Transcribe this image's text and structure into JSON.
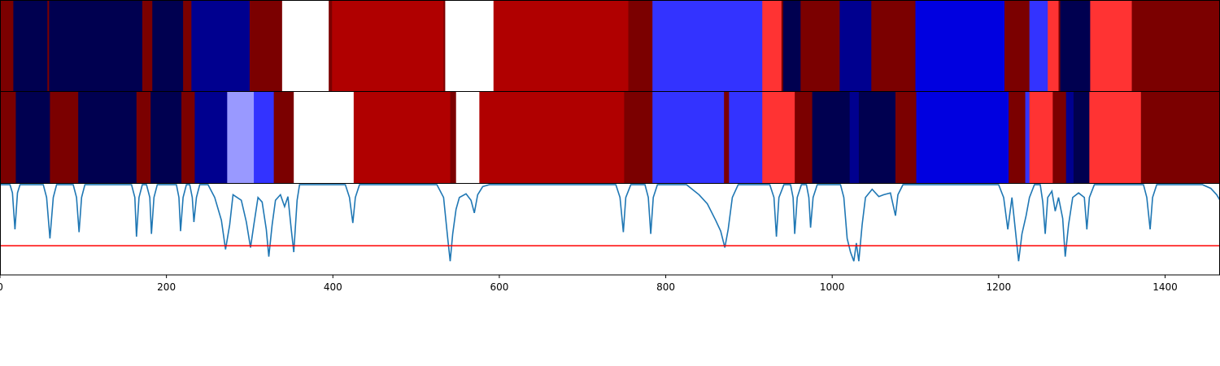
{
  "chart_data": {
    "type": "heatmap",
    "x_max": 1466,
    "xticks": [
      0,
      200,
      400,
      600,
      800,
      1000,
      1200,
      1400
    ],
    "xtick_labels": [
      "0",
      "200",
      "400",
      "600",
      "800",
      "1000",
      "1200",
      "1400"
    ],
    "palette": {
      "wine": "#7b0000",
      "red": "#b00000",
      "bright_red": "#ff3333",
      "navy": "#000050",
      "deep_blue": "#00008f",
      "blue": "#0000e0",
      "light_blue": "#3333ff",
      "pale_blue": "#9999ff",
      "white": "#ffffff"
    },
    "row1_segments": [
      {
        "start": 0,
        "end": 16,
        "color": "wine"
      },
      {
        "start": 16,
        "end": 57,
        "color": "navy"
      },
      {
        "start": 57,
        "end": 59,
        "color": "wine"
      },
      {
        "start": 59,
        "end": 171,
        "color": "navy"
      },
      {
        "start": 171,
        "end": 183,
        "color": "wine"
      },
      {
        "start": 183,
        "end": 220,
        "color": "navy"
      },
      {
        "start": 220,
        "end": 230,
        "color": "wine"
      },
      {
        "start": 230,
        "end": 300,
        "color": "deep_blue"
      },
      {
        "start": 300,
        "end": 339,
        "color": "wine"
      },
      {
        "start": 339,
        "end": 395,
        "color": "white"
      },
      {
        "start": 395,
        "end": 399,
        "color": "wine"
      },
      {
        "start": 399,
        "end": 533,
        "color": "red"
      },
      {
        "start": 533,
        "end": 535,
        "color": "wine"
      },
      {
        "start": 535,
        "end": 593,
        "color": "white"
      },
      {
        "start": 593,
        "end": 755,
        "color": "red"
      },
      {
        "start": 755,
        "end": 784,
        "color": "wine"
      },
      {
        "start": 784,
        "end": 916,
        "color": "light_blue"
      },
      {
        "start": 916,
        "end": 939,
        "color": "bright_red"
      },
      {
        "start": 939,
        "end": 941,
        "color": "wine"
      },
      {
        "start": 941,
        "end": 962,
        "color": "navy"
      },
      {
        "start": 962,
        "end": 1009,
        "color": "wine"
      },
      {
        "start": 1009,
        "end": 1047,
        "color": "deep_blue"
      },
      {
        "start": 1047,
        "end": 1100,
        "color": "wine"
      },
      {
        "start": 1100,
        "end": 1207,
        "color": "blue"
      },
      {
        "start": 1207,
        "end": 1237,
        "color": "wine"
      },
      {
        "start": 1237,
        "end": 1259,
        "color": "light_blue"
      },
      {
        "start": 1259,
        "end": 1272,
        "color": "bright_red"
      },
      {
        "start": 1272,
        "end": 1274,
        "color": "wine"
      },
      {
        "start": 1274,
        "end": 1310,
        "color": "navy"
      },
      {
        "start": 1310,
        "end": 1360,
        "color": "bright_red"
      },
      {
        "start": 1360,
        "end": 1466,
        "color": "wine"
      }
    ],
    "row2_segments": [
      {
        "start": 0,
        "end": 19,
        "color": "wine"
      },
      {
        "start": 19,
        "end": 60,
        "color": "navy"
      },
      {
        "start": 60,
        "end": 94,
        "color": "wine"
      },
      {
        "start": 94,
        "end": 164,
        "color": "navy"
      },
      {
        "start": 164,
        "end": 181,
        "color": "wine"
      },
      {
        "start": 181,
        "end": 218,
        "color": "navy"
      },
      {
        "start": 218,
        "end": 234,
        "color": "wine"
      },
      {
        "start": 234,
        "end": 273,
        "color": "deep_blue"
      },
      {
        "start": 273,
        "end": 305,
        "color": "pale_blue"
      },
      {
        "start": 305,
        "end": 329,
        "color": "light_blue"
      },
      {
        "start": 329,
        "end": 353,
        "color": "wine"
      },
      {
        "start": 353,
        "end": 425,
        "color": "white"
      },
      {
        "start": 425,
        "end": 541,
        "color": "red"
      },
      {
        "start": 541,
        "end": 548,
        "color": "wine"
      },
      {
        "start": 548,
        "end": 576,
        "color": "white"
      },
      {
        "start": 576,
        "end": 750,
        "color": "red"
      },
      {
        "start": 750,
        "end": 784,
        "color": "wine"
      },
      {
        "start": 784,
        "end": 870,
        "color": "light_blue"
      },
      {
        "start": 870,
        "end": 876,
        "color": "wine"
      },
      {
        "start": 876,
        "end": 916,
        "color": "light_blue"
      },
      {
        "start": 916,
        "end": 955,
        "color": "bright_red"
      },
      {
        "start": 955,
        "end": 976,
        "color": "wine"
      },
      {
        "start": 976,
        "end": 1021,
        "color": "navy"
      },
      {
        "start": 1021,
        "end": 1032,
        "color": "deep_blue"
      },
      {
        "start": 1032,
        "end": 1076,
        "color": "navy"
      },
      {
        "start": 1076,
        "end": 1101,
        "color": "wine"
      },
      {
        "start": 1101,
        "end": 1212,
        "color": "blue"
      },
      {
        "start": 1212,
        "end": 1232,
        "color": "wine"
      },
      {
        "start": 1232,
        "end": 1237,
        "color": "light_blue"
      },
      {
        "start": 1237,
        "end": 1265,
        "color": "bright_red"
      },
      {
        "start": 1265,
        "end": 1281,
        "color": "wine"
      },
      {
        "start": 1281,
        "end": 1290,
        "color": "deep_blue"
      },
      {
        "start": 1290,
        "end": 1309,
        "color": "navy"
      },
      {
        "start": 1309,
        "end": 1371,
        "color": "bright_red"
      },
      {
        "start": 1371,
        "end": 1466,
        "color": "wine"
      }
    ],
    "line_series": {
      "color": "#1f77b4",
      "baseline_value": 1.0,
      "ylim": [
        0,
        1
      ],
      "threshold": 0.32,
      "threshold_color": "#ff0000",
      "points": [
        [
          0,
          0.99
        ],
        [
          12,
          0.99
        ],
        [
          15,
          0.9
        ],
        [
          18,
          0.5
        ],
        [
          21,
          0.9
        ],
        [
          24,
          0.99
        ],
        [
          52,
          0.99
        ],
        [
          56,
          0.85
        ],
        [
          60,
          0.4
        ],
        [
          64,
          0.85
        ],
        [
          68,
          0.99
        ],
        [
          88,
          0.99
        ],
        [
          92,
          0.85
        ],
        [
          95,
          0.47
        ],
        [
          98,
          0.85
        ],
        [
          102,
          0.99
        ],
        [
          158,
          0.99
        ],
        [
          162,
          0.85
        ],
        [
          164,
          0.42
        ],
        [
          167,
          0.85
        ],
        [
          171,
          0.99
        ],
        [
          176,
          0.99
        ],
        [
          180,
          0.85
        ],
        [
          182,
          0.45
        ],
        [
          185,
          0.85
        ],
        [
          189,
          0.99
        ],
        [
          212,
          0.99
        ],
        [
          215,
          0.85
        ],
        [
          217,
          0.48
        ],
        [
          220,
          0.85
        ],
        [
          224,
          0.99
        ],
        [
          228,
          0.99
        ],
        [
          231,
          0.85
        ],
        [
          233,
          0.58
        ],
        [
          236,
          0.85
        ],
        [
          240,
          0.99
        ],
        [
          250,
          0.99
        ],
        [
          258,
          0.85
        ],
        [
          266,
          0.6
        ],
        [
          271,
          0.28
        ],
        [
          276,
          0.55
        ],
        [
          280,
          0.88
        ],
        [
          290,
          0.82
        ],
        [
          296,
          0.58
        ],
        [
          301,
          0.3
        ],
        [
          305,
          0.55
        ],
        [
          310,
          0.85
        ],
        [
          315,
          0.8
        ],
        [
          320,
          0.5
        ],
        [
          323,
          0.2
        ],
        [
          327,
          0.55
        ],
        [
          331,
          0.82
        ],
        [
          337,
          0.88
        ],
        [
          342,
          0.75
        ],
        [
          346,
          0.86
        ],
        [
          350,
          0.5
        ],
        [
          353,
          0.25
        ],
        [
          357,
          0.82
        ],
        [
          360,
          0.99
        ],
        [
          415,
          0.99
        ],
        [
          420,
          0.85
        ],
        [
          424,
          0.57
        ],
        [
          427,
          0.85
        ],
        [
          432,
          0.99
        ],
        [
          525,
          0.99
        ],
        [
          533,
          0.85
        ],
        [
          538,
          0.4
        ],
        [
          541,
          0.15
        ],
        [
          544,
          0.45
        ],
        [
          548,
          0.72
        ],
        [
          552,
          0.85
        ],
        [
          560,
          0.89
        ],
        [
          566,
          0.82
        ],
        [
          570,
          0.68
        ],
        [
          574,
          0.88
        ],
        [
          580,
          0.97
        ],
        [
          588,
          0.99
        ],
        [
          740,
          0.99
        ],
        [
          745,
          0.85
        ],
        [
          749,
          0.47
        ],
        [
          752,
          0.85
        ],
        [
          758,
          0.99
        ],
        [
          775,
          0.99
        ],
        [
          779,
          0.85
        ],
        [
          782,
          0.45
        ],
        [
          785,
          0.85
        ],
        [
          790,
          0.99
        ],
        [
          825,
          0.99
        ],
        [
          840,
          0.88
        ],
        [
          850,
          0.78
        ],
        [
          860,
          0.6
        ],
        [
          866,
          0.48
        ],
        [
          871,
          0.3
        ],
        [
          875,
          0.5
        ],
        [
          880,
          0.85
        ],
        [
          887,
          0.99
        ],
        [
          925,
          0.99
        ],
        [
          930,
          0.85
        ],
        [
          933,
          0.42
        ],
        [
          936,
          0.85
        ],
        [
          942,
          0.99
        ],
        [
          950,
          0.99
        ],
        [
          953,
          0.85
        ],
        [
          955,
          0.45
        ],
        [
          958,
          0.85
        ],
        [
          963,
          0.99
        ],
        [
          969,
          0.99
        ],
        [
          972,
          0.85
        ],
        [
          974,
          0.52
        ],
        [
          977,
          0.85
        ],
        [
          982,
          0.99
        ],
        [
          1010,
          0.99
        ],
        [
          1014,
          0.85
        ],
        [
          1018,
          0.4
        ],
        [
          1022,
          0.25
        ],
        [
          1026,
          0.15
        ],
        [
          1029,
          0.35
        ],
        [
          1032,
          0.15
        ],
        [
          1036,
          0.55
        ],
        [
          1040,
          0.85
        ],
        [
          1048,
          0.94
        ],
        [
          1056,
          0.86
        ],
        [
          1062,
          0.88
        ],
        [
          1070,
          0.9
        ],
        [
          1076,
          0.65
        ],
        [
          1079,
          0.88
        ],
        [
          1085,
          0.99
        ],
        [
          1200,
          0.99
        ],
        [
          1206,
          0.85
        ],
        [
          1211,
          0.5
        ],
        [
          1216,
          0.85
        ],
        [
          1220,
          0.5
        ],
        [
          1224,
          0.15
        ],
        [
          1228,
          0.45
        ],
        [
          1233,
          0.65
        ],
        [
          1237,
          0.85
        ],
        [
          1243,
          0.99
        ],
        [
          1250,
          0.99
        ],
        [
          1253,
          0.8
        ],
        [
          1256,
          0.45
        ],
        [
          1259,
          0.85
        ],
        [
          1264,
          0.92
        ],
        [
          1268,
          0.7
        ],
        [
          1272,
          0.85
        ],
        [
          1277,
          0.62
        ],
        [
          1280,
          0.2
        ],
        [
          1284,
          0.55
        ],
        [
          1289,
          0.85
        ],
        [
          1296,
          0.9
        ],
        [
          1303,
          0.85
        ],
        [
          1306,
          0.5
        ],
        [
          1309,
          0.85
        ],
        [
          1315,
          0.99
        ],
        [
          1374,
          0.99
        ],
        [
          1378,
          0.85
        ],
        [
          1382,
          0.5
        ],
        [
          1385,
          0.85
        ],
        [
          1390,
          0.99
        ],
        [
          1445,
          0.99
        ],
        [
          1455,
          0.95
        ],
        [
          1462,
          0.88
        ],
        [
          1466,
          0.82
        ]
      ]
    }
  }
}
